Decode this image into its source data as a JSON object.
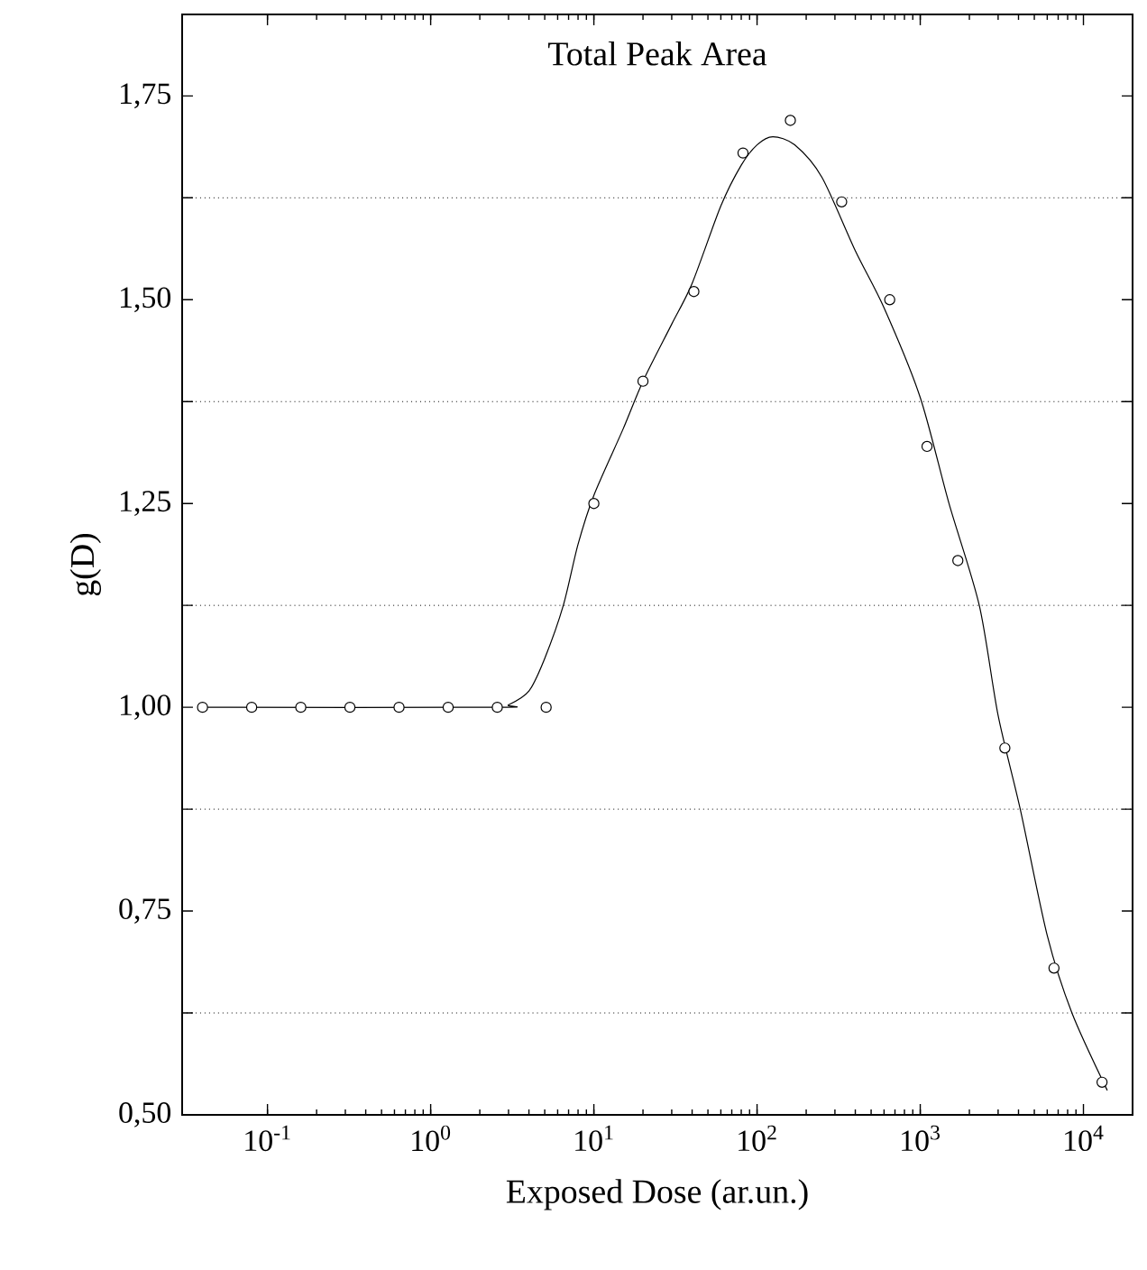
{
  "chart_data": {
    "type": "scatter",
    "title": "Total Peak Area",
    "xlabel": "Exposed Dose (ar.un.)",
    "ylabel": "g(D)",
    "log": "x",
    "marker": "circle",
    "grid": false,
    "xlim": [
      0.03,
      20000
    ],
    "ylim": [
      0.5,
      1.85
    ],
    "xticks": [
      {
        "value": 0.1,
        "label": "10$^{-1}$"
      },
      {
        "value": 1,
        "label": "10$^{0}$"
      },
      {
        "value": 10,
        "label": "10$^{1}$"
      },
      {
        "value": 100,
        "label": "10$^{2}$"
      },
      {
        "value": 1000,
        "label": "10$^{3}$"
      },
      {
        "value": 10000,
        "label": "10$^{4}$"
      }
    ],
    "yticks": [
      {
        "value": 0.5,
        "label": "0,50"
      },
      {
        "value": 0.625,
        "label": null
      },
      {
        "value": 0.75,
        "label": "0,75"
      },
      {
        "value": 0.875,
        "label": null
      },
      {
        "value": 1.0,
        "label": "1,00"
      },
      {
        "value": 1.125,
        "label": null
      },
      {
        "value": 1.25,
        "label": "1,25"
      },
      {
        "value": 1.375,
        "label": null
      },
      {
        "value": 1.5,
        "label": "1,50"
      },
      {
        "value": 1.625,
        "label": null
      },
      {
        "value": 1.75,
        "label": "1,75"
      }
    ],
    "ref_lines": [
      {
        "axis": "y",
        "value": 0.625,
        "line_style": "dotted"
      },
      {
        "axis": "y",
        "value": 0.875,
        "line_style": "dotted"
      },
      {
        "axis": "y",
        "value": 1.125,
        "line_style": "dotted"
      },
      {
        "axis": "y",
        "value": 1.375,
        "line_style": "dotted"
      },
      {
        "axis": "y",
        "value": 1.625,
        "line_style": "dotted"
      }
    ],
    "series": [
      {
        "type": "line",
        "marker": "none",
        "line_style": "solid",
        "color": "#000000",
        "x": [
          0.04,
          2.5,
          3,
          4,
          5,
          6.5,
          8,
          10,
          15,
          20,
          30,
          40,
          60,
          80,
          100,
          125,
          170,
          250,
          400,
          600,
          1000,
          1500,
          2300,
          3000,
          4100,
          6000,
          8500,
          14000
        ],
        "values": [
          1.0,
          1.0,
          1.003,
          1.02,
          1.06,
          1.125,
          1.2,
          1.26,
          1.34,
          1.4,
          1.47,
          1.52,
          1.615,
          1.665,
          1.69,
          1.7,
          1.69,
          1.65,
          1.56,
          1.49,
          1.38,
          1.25,
          1.125,
          0.99,
          0.875,
          0.72,
          0.625,
          0.53
        ]
      },
      {
        "color": "#000000",
        "x": [
          0.04,
          0.08,
          0.16,
          0.32,
          0.64,
          1.28,
          2.56,
          5.1,
          10,
          20,
          41,
          82,
          160,
          330,
          650,
          1100,
          1700,
          3300,
          6600,
          13000
        ],
        "values": [
          1.0,
          1.0,
          1.0,
          1.0,
          1.0,
          1.0,
          1.0,
          1.0,
          1.25,
          1.4,
          1.51,
          1.68,
          1.72,
          1.62,
          1.5,
          1.32,
          1.18,
          0.95,
          0.68,
          0.54
        ]
      }
    ]
  }
}
